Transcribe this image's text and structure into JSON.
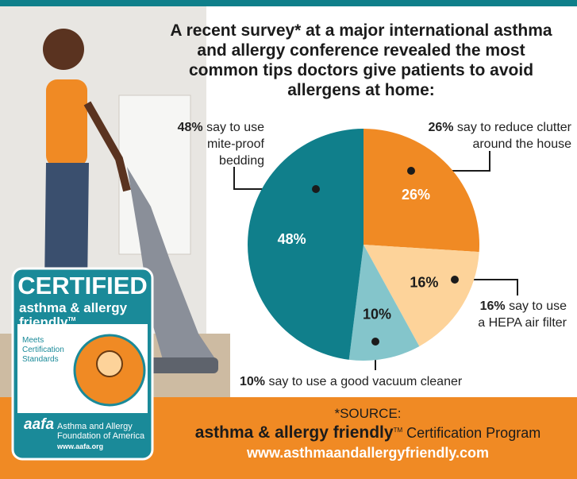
{
  "chart_data": {
    "type": "pie",
    "title": "A recent survey* at a major international asthma and allergy conference revealed the most common tips doctors give patients to avoid allergens at home:",
    "categories": [
      "say to reduce clutter around the house",
      "say to use a HEPA air filter",
      "say to use a good vacuum cleaner",
      "say to use mite-proof bedding"
    ],
    "values": [
      26,
      16,
      10,
      48
    ],
    "value_labels": [
      "26%",
      "16%",
      "10%",
      "48%"
    ],
    "colors": [
      "#f08a24",
      "#fdd39a",
      "#84c5cb",
      "#107f8b"
    ]
  },
  "badge": {
    "headline": "CERTIFIED",
    "line1": "asthma & allergy",
    "line2": "friendly",
    "trademark": "TM",
    "meets": "Meets Certification Standards",
    "org_logo": "aafa",
    "org": "Asthma and Allergy Foundation of America",
    "org_url": "www.aafa.org"
  },
  "footer": {
    "source": "*SOURCE:",
    "brand": "asthma & allergy friendly",
    "trademark": "TM",
    "program": "Certification Program",
    "url": "www.asthmaandallergyfriendly.com"
  }
}
